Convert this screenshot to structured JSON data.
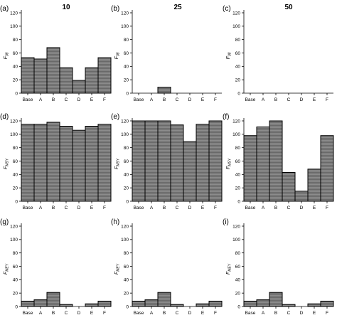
{
  "figure": {
    "columns": [
      {
        "title": "10"
      },
      {
        "title": "25"
      },
      {
        "title": "50"
      }
    ],
    "rows": [
      {
        "ylabel_main": "F",
        "ylabel_sub": "08"
      },
      {
        "ylabel_main": "F",
        "ylabel_sub": "MSY"
      },
      {
        "ylabel_main": "F",
        "ylabel_sub": "MEY"
      }
    ]
  },
  "colors": {
    "bar_fill": "#8c8c8c",
    "bar_stroke": "#000000",
    "axis": "#000000"
  },
  "chart_data": [
    {
      "type": "bar",
      "panel": "(a)",
      "ylabel": "F08",
      "categories": [
        "Base",
        "A",
        "B",
        "C",
        "D",
        "E",
        "F"
      ],
      "values": [
        53,
        51,
        68,
        38,
        19,
        38,
        53
      ],
      "ylim": [
        0,
        120
      ],
      "yticks": [
        0,
        20,
        40,
        60,
        80,
        100,
        120
      ],
      "grid": false
    },
    {
      "type": "bar",
      "panel": "(b)",
      "ylabel": "F08",
      "categories": [
        "Base",
        "A",
        "B",
        "C",
        "D",
        "E",
        "F"
      ],
      "values": [
        0,
        0,
        9,
        0,
        0,
        0,
        0
      ],
      "ylim": [
        0,
        120
      ],
      "yticks": [
        0,
        20,
        40,
        60,
        80,
        100,
        120
      ],
      "grid": false
    },
    {
      "type": "bar",
      "panel": "(c)",
      "ylabel": "F08",
      "categories": [
        "Base",
        "A",
        "B",
        "C",
        "D",
        "E",
        "F"
      ],
      "values": [
        0,
        0,
        0,
        0,
        0,
        0,
        0
      ],
      "ylim": [
        0,
        120
      ],
      "yticks": [
        0,
        20,
        40,
        60,
        80,
        100,
        120
      ],
      "grid": false
    },
    {
      "type": "bar",
      "panel": "(d)",
      "ylabel": "FMSY",
      "categories": [
        "Base",
        "A",
        "B",
        "C",
        "D",
        "E",
        "F"
      ],
      "values": [
        115,
        115,
        118,
        112,
        106,
        112,
        115
      ],
      "ylim": [
        0,
        120
      ],
      "yticks": [
        0,
        20,
        40,
        60,
        80,
        100,
        120
      ],
      "grid": false
    },
    {
      "type": "bar",
      "panel": "(e)",
      "ylabel": "FMSY",
      "categories": [
        "Base",
        "A",
        "B",
        "C",
        "D",
        "E",
        "F"
      ],
      "values": [
        120,
        120,
        120,
        114,
        89,
        115,
        120
      ],
      "ylim": [
        0,
        120
      ],
      "yticks": [
        0,
        20,
        40,
        60,
        80,
        100,
        120
      ],
      "grid": false
    },
    {
      "type": "bar",
      "panel": "(f)",
      "ylabel": "FMSY",
      "categories": [
        "Base",
        "A",
        "B",
        "C",
        "D",
        "E",
        "F"
      ],
      "values": [
        98,
        111,
        120,
        43,
        15,
        48,
        98
      ],
      "ylim": [
        0,
        120
      ],
      "yticks": [
        0,
        20,
        40,
        60,
        80,
        100,
        120
      ],
      "grid": false
    },
    {
      "type": "bar",
      "panel": "(g)",
      "ylabel": "FMEY",
      "categories": [
        "Base",
        "A",
        "B",
        "C",
        "D",
        "E",
        "F"
      ],
      "values": [
        8,
        10,
        21,
        3,
        0,
        4,
        8
      ],
      "ylim": [
        0,
        120
      ],
      "yticks": [
        0,
        20,
        40,
        60,
        80,
        100,
        120
      ],
      "grid": false
    },
    {
      "type": "bar",
      "panel": "(h)",
      "ylabel": "FMEY",
      "categories": [
        "Base",
        "A",
        "B",
        "C",
        "D",
        "E",
        "F"
      ],
      "values": [
        8,
        10,
        21,
        3,
        0,
        4,
        8
      ],
      "ylim": [
        0,
        120
      ],
      "yticks": [
        0,
        20,
        40,
        60,
        80,
        100,
        120
      ],
      "grid": false
    },
    {
      "type": "bar",
      "panel": "(i)",
      "ylabel": "FMEY",
      "categories": [
        "Base",
        "A",
        "B",
        "C",
        "D",
        "E",
        "F"
      ],
      "values": [
        8,
        10,
        21,
        3,
        0,
        4,
        8
      ],
      "ylim": [
        0,
        120
      ],
      "yticks": [
        0,
        20,
        40,
        60,
        80,
        100,
        120
      ],
      "grid": false
    }
  ]
}
